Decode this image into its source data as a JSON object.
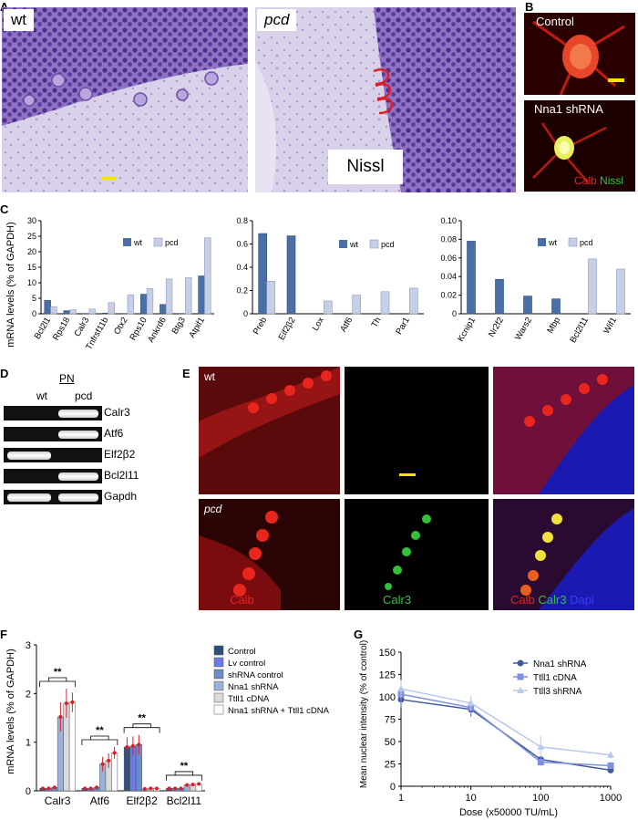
{
  "panels": {
    "a": {
      "letter": "A",
      "wt_label": "wt",
      "pcd_label": "pcd",
      "stain_label": "Nissl"
    },
    "b": {
      "letter": "B",
      "control_label": "Control",
      "shrna_label": "Nna1 shRNA",
      "legend_red": "Calb",
      "legend_green": "Nissl"
    },
    "c": {
      "letter": "C"
    },
    "d": {
      "letter": "D",
      "pn_label": "PN",
      "col_wt": "wt",
      "col_pcd": "pcd",
      "rows": [
        "Calr3",
        "Atf6",
        "Elf2β2",
        "Bcl2l11",
        "Gapdh"
      ]
    },
    "e": {
      "letter": "E",
      "wt_label": "wt",
      "pcd_label": "pcd",
      "label_calb": "Calb",
      "label_calr3": "Calr3",
      "merge_calb": "Calb",
      "merge_calr3": "Calr3",
      "merge_dapi": "Dapi"
    },
    "f": {
      "letter": "F"
    },
    "g": {
      "letter": "G"
    }
  },
  "colors": {
    "wt": "#4a6fa5",
    "pcd": "#c7cfe6",
    "nissl": "#7a5ab0",
    "calb": "#e8221a",
    "calr3": "#35c03a",
    "dapi": "#2a2ad6"
  },
  "chart_data": [
    {
      "id": "C1",
      "type": "bar",
      "categories": [
        "Bcl2l1",
        "Rps18",
        "Calr3",
        "Tnfrsf11b",
        "Otx2",
        "Rps10",
        "Ankrd6",
        "Btg3",
        "Atpif1"
      ],
      "series": [
        {
          "name": "wt",
          "values": [
            4.3,
            1.0,
            0.1,
            0.2,
            0.1,
            6.3,
            3.0,
            0.1,
            12.2
          ]
        },
        {
          "name": "pcd",
          "values": [
            2.3,
            1.3,
            1.5,
            3.6,
            6.1,
            8.1,
            11.2,
            11.7,
            24.5
          ]
        }
      ],
      "ylabel": "mRNA levels (% of GAPDH)",
      "ylim": [
        0,
        30
      ],
      "yticks": [
        0,
        5,
        10,
        15,
        20,
        25,
        30
      ],
      "legend": "top-center"
    },
    {
      "id": "C2",
      "type": "bar",
      "categories": [
        "Preb",
        "Eif2β2",
        "Lox",
        "Atf6",
        "Th",
        "Par1"
      ],
      "series": [
        {
          "name": "wt",
          "values": [
            0.69,
            0.67,
            0,
            0,
            0,
            0
          ]
        },
        {
          "name": "pcd",
          "values": [
            0.28,
            0,
            0.11,
            0.16,
            0.19,
            0.22
          ]
        }
      ],
      "ylim": [
        0,
        0.8
      ],
      "yticks": [
        "0",
        "0.2",
        "0.4",
        "0.6",
        "0.8"
      ],
      "legend": "top-right"
    },
    {
      "id": "C3",
      "type": "bar",
      "categories": [
        "Kcnip1",
        "Nr2f2",
        "Wars2",
        "Mbp",
        "Bcl2l11",
        "Wif1"
      ],
      "series": [
        {
          "name": "wt",
          "values": [
            0.078,
            0.037,
            0.019,
            0.016,
            0,
            0
          ]
        },
        {
          "name": "pcd",
          "values": [
            0,
            0,
            0,
            0,
            0.059,
            0.048
          ]
        }
      ],
      "ylim": [
        0,
        0.1
      ],
      "yticks": [
        "0",
        "0.02",
        "0.04",
        "0.06",
        "0.08",
        "0.10"
      ],
      "legend": "top-right"
    },
    {
      "id": "F",
      "type": "bar",
      "categories": [
        "Calr3",
        "Atf6",
        "Elf2β2",
        "Bcl2l11"
      ],
      "series": [
        {
          "name": "Control",
          "color": "#2f4f7f",
          "values": [
            0.05,
            0.05,
            0.9,
            0.05
          ]
        },
        {
          "name": "Lv control",
          "color": "#6d7ae6",
          "values": [
            0.05,
            0.05,
            0.92,
            0.05
          ]
        },
        {
          "name": "shRNA control",
          "color": "#6a8cc7",
          "values": [
            0.07,
            0.07,
            0.95,
            0.05
          ]
        },
        {
          "name": "Nna1 shRNA",
          "color": "#9cb0d8",
          "values": [
            1.52,
            0.55,
            0.04,
            0.12
          ]
        },
        {
          "name": "Ttll1 cDNA",
          "color": "#d9d9d9",
          "values": [
            1.8,
            0.62,
            0.05,
            0.13
          ]
        },
        {
          "name": "Nna1 shRNA + Ttll1 cDNA",
          "color": "#ffffff",
          "values": [
            1.82,
            0.78,
            0.05,
            0.14
          ]
        }
      ],
      "errors": [
        [
          0.02,
          0.02,
          0.2,
          0.02
        ],
        [
          0.02,
          0.02,
          0.2,
          0.02
        ],
        [
          0.03,
          0.03,
          0.2,
          0.02
        ],
        [
          0.3,
          0.15,
          0.02,
          0.03
        ],
        [
          0.3,
          0.15,
          0.02,
          0.03
        ],
        [
          0.2,
          0.12,
          0.02,
          0.03
        ]
      ],
      "ylabel": "mRNA levels (% of GAPDH)",
      "ylim": [
        0,
        3
      ],
      "yticks": [
        0,
        1,
        2,
        3
      ],
      "significance": "**",
      "legend": "right"
    },
    {
      "id": "G",
      "type": "line",
      "x": [
        1,
        10,
        100,
        1000
      ],
      "series": [
        {
          "name": "Nna1 shRNA",
          "color": "#3d5a99",
          "marker": "circle",
          "values": [
            97,
            86,
            30,
            18
          ],
          "errors": [
            10,
            8,
            4,
            3
          ]
        },
        {
          "name": "Ttll1 cDNA",
          "color": "#8090e0",
          "marker": "square",
          "values": [
            103,
            88,
            27,
            23
          ],
          "errors": [
            10,
            8,
            4,
            4
          ]
        },
        {
          "name": "Ttll3 shRNA",
          "color": "#b8c8ec",
          "marker": "triangle",
          "values": [
            109,
            93,
            44,
            35
          ],
          "errors": [
            10,
            8,
            12,
            4
          ]
        }
      ],
      "xlabel": "Dose (x50000 TU/mL)",
      "ylabel": "Mean nuclear intensity (% of control)",
      "xscale": "log",
      "xlim": [
        1,
        1000
      ],
      "xticks": [
        "1",
        "10",
        "100",
        "1000"
      ],
      "ylim": [
        0,
        150
      ],
      "yticks": [
        "0",
        "25",
        "50",
        "75",
        "100",
        "125",
        "150"
      ],
      "legend": "top-right"
    }
  ]
}
